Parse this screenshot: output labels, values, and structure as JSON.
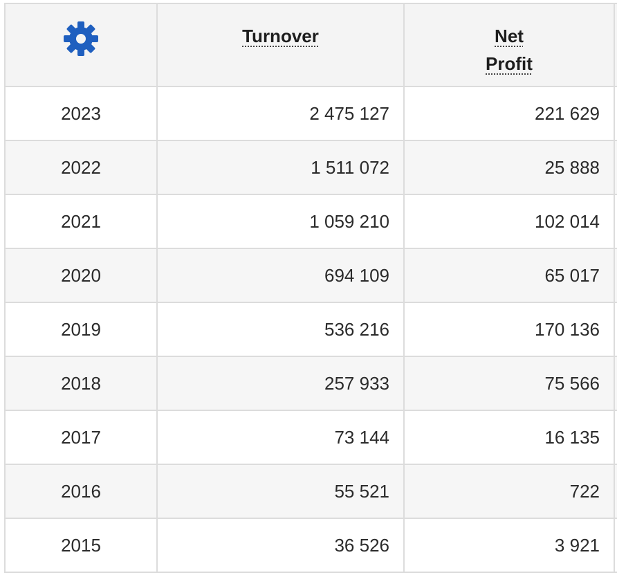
{
  "table": {
    "settings_icon": "gear-icon",
    "settings_color": "#1f5fbf",
    "columns": {
      "turnover": "Turnover",
      "net_profit": "Net Profit"
    },
    "rows": [
      {
        "year": "2023",
        "turnover": "2 475 127",
        "net_profit": "221 629"
      },
      {
        "year": "2022",
        "turnover": "1 511 072",
        "net_profit": "25 888"
      },
      {
        "year": "2021",
        "turnover": "1 059 210",
        "net_profit": "102 014"
      },
      {
        "year": "2020",
        "turnover": "694 109",
        "net_profit": "65 017"
      },
      {
        "year": "2019",
        "turnover": "536 216",
        "net_profit": "170 136"
      },
      {
        "year": "2018",
        "turnover": "257 933",
        "net_profit": "75 566"
      },
      {
        "year": "2017",
        "turnover": "73 144",
        "net_profit": "16 135"
      },
      {
        "year": "2016",
        "turnover": "55 521",
        "net_profit": "722"
      },
      {
        "year": "2015",
        "turnover": "36 526",
        "net_profit": "3 921"
      }
    ]
  }
}
